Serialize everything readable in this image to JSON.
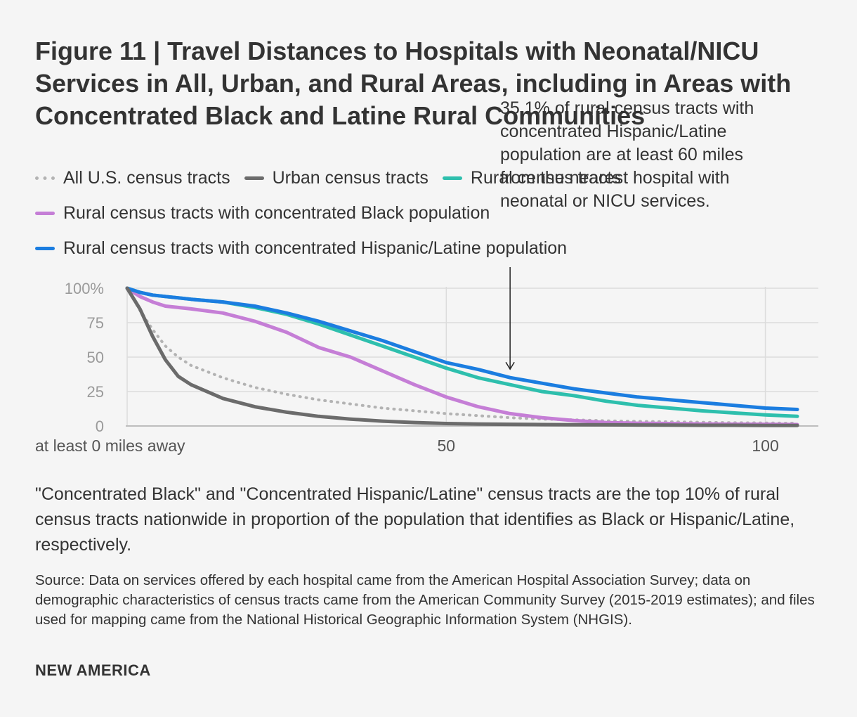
{
  "title": "Figure 11 | Travel Distances to Hospitals with Neonatal/NICU Services in All, Urban, and Rural Areas, including in Areas with Concentrated Black and Latine Rural Communities",
  "annotation": "35.1% of rural census tracts with concentrated Hispanic/Latine population are at least 60 miles from the nearest hospital with neonatal or NICU services.",
  "note": "\"Concentrated Black\" and \"Concentrated Hispanic/Latine\" census tracts are the top 10% of rural census tracts nationwide in proportion of the population that identifies as Black or Hispanic/Latine, respectively.",
  "source": "Source: Data on services offered by each hospital came from the American Hospital Association Survey; data on demographic characteristics of census tracts came from the American Community Survey (2015-2019 estimates); and files used for mapping came from the National Historical Geographic Information System (NHGIS).",
  "brand": "NEW AMERICA",
  "chart_data": {
    "type": "line",
    "title": "Figure 11 | Travel Distances to Hospitals with Neonatal/NICU Services in All, Urban, and Rural Areas, including in Areas with Concentrated Black and Latine Rural Communities",
    "xlabel": "",
    "ylabel": "",
    "xlim": [
      0,
      105
    ],
    "ylim": [
      0,
      100
    ],
    "x_ticks": [
      {
        "value": 0,
        "label": "at least 0 miles away"
      },
      {
        "value": 50,
        "label": "50"
      },
      {
        "value": 100,
        "label": "100"
      }
    ],
    "y_ticks": [
      {
        "value": 0,
        "label": "0"
      },
      {
        "value": 25,
        "label": "25"
      },
      {
        "value": 50,
        "label": "50"
      },
      {
        "value": 75,
        "label": "75"
      },
      {
        "value": 100,
        "label": "100%"
      }
    ],
    "grid": true,
    "legend_position": "top",
    "x": [
      0,
      2,
      4,
      6,
      8,
      10,
      15,
      20,
      25,
      30,
      35,
      40,
      45,
      50,
      55,
      60,
      65,
      70,
      75,
      80,
      85,
      90,
      95,
      100,
      105
    ],
    "series": [
      {
        "name": "All U.S. census tracts",
        "style": "dotted",
        "color": "#b3b3b3",
        "values": [
          100,
          84,
          70,
          58,
          50,
          44,
          35,
          28,
          23,
          19,
          16,
          13,
          11,
          9,
          7.5,
          6,
          5,
          4.5,
          3.8,
          3.3,
          3,
          2.7,
          2.4,
          2.2,
          2
        ]
      },
      {
        "name": "Urban census tracts",
        "style": "solid",
        "color": "#6b6b6b",
        "values": [
          100,
          85,
          65,
          48,
          36,
          30,
          20,
          14,
          10,
          7,
          5,
          3.5,
          2.5,
          1.8,
          1.4,
          1.2,
          1,
          0.9,
          0.8,
          0.7,
          0.6,
          0.5,
          0.5,
          0.4,
          0.4
        ]
      },
      {
        "name": "Rural census tracts",
        "style": "solid",
        "color": "#2ebfad",
        "values": [
          100,
          97,
          95,
          94,
          93,
          92,
          90,
          86,
          81,
          74,
          66,
          58,
          50,
          42,
          35,
          30,
          25,
          22,
          18,
          15,
          13,
          11,
          9.5,
          8,
          7
        ]
      },
      {
        "name": "Rural census tracts with concentrated Black population",
        "style": "solid",
        "color": "#c57ed6",
        "values": [
          100,
          94,
          90,
          87,
          86,
          85,
          82,
          76,
          68,
          57,
          50,
          40,
          30,
          21,
          14,
          9,
          6,
          4,
          2.5,
          2,
          1.8,
          1.5,
          1.3,
          1.2,
          1
        ]
      },
      {
        "name": "Rural census tracts with concentrated Hispanic/Latine population",
        "style": "solid",
        "color": "#1b7de0",
        "values": [
          100,
          97,
          95,
          94,
          93,
          92,
          90,
          87,
          82,
          76,
          69,
          62,
          54,
          46,
          41,
          35.1,
          31,
          27,
          24,
          21,
          19,
          17,
          15,
          13,
          12
        ]
      }
    ],
    "annotation": {
      "text": "35.1% of rural census tracts with concentrated Hispanic/Latine population are at least 60 miles from the nearest hospital with neonatal or NICU services.",
      "x": 60,
      "y": 35.1
    }
  }
}
